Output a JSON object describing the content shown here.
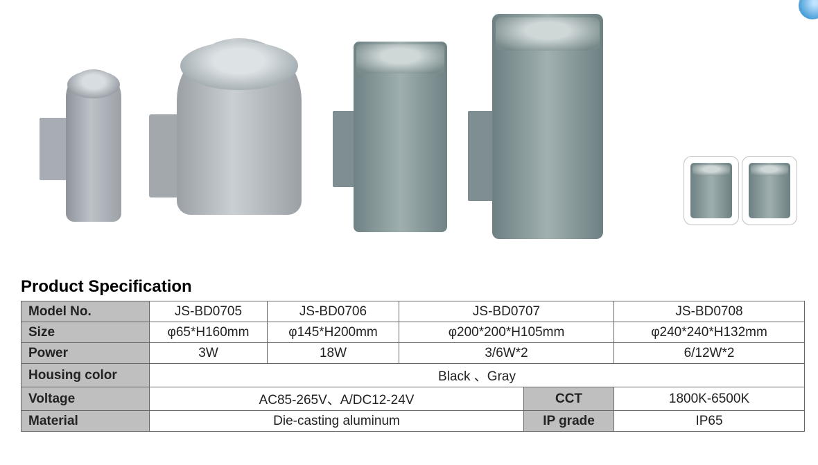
{
  "corner_badge_color": "#4a9fd8",
  "products": {
    "thumb_count": 2,
    "colors": {
      "cylinder_body": "#bcc2c7",
      "rect_body": "#9fafaf",
      "mount": "#a3a8ad"
    }
  },
  "spec": {
    "title": "Product Specification",
    "title_fontsize": 24,
    "header_bg": "#bfbfbf",
    "border_color": "#666666",
    "cell_fontsize": 19,
    "columns": [
      "Model No.",
      "Size",
      "Power",
      "Housing color",
      "Voltage",
      "Material"
    ],
    "secondary_labels": {
      "cct": "CCT",
      "ip": "IP grade"
    },
    "models": [
      "JS-BD0705",
      "JS-BD0706",
      "JS-BD0707",
      "JS-BD0708"
    ],
    "sizes": [
      "φ65*H160mm",
      "φ145*H200mm",
      "φ200*200*H105mm",
      "φ240*240*H132mm"
    ],
    "powers": [
      "3W",
      "18W",
      "3/6W*2",
      "6/12W*2"
    ],
    "housing_color": "Black 、Gray",
    "voltage": "AC85-265V、A/DC12-24V",
    "cct": "1800K-6500K",
    "material": "Die-casting aluminum",
    "ip_grade": "IP65"
  }
}
